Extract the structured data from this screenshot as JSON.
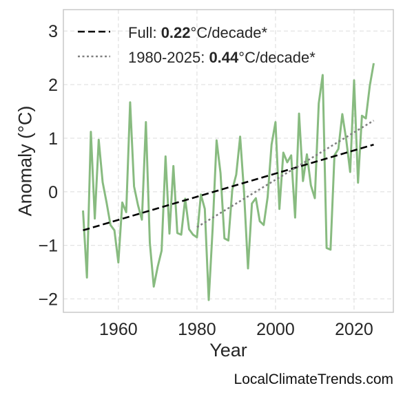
{
  "chart_data": {
    "type": "line",
    "xlabel": "Year",
    "ylabel": "Anomaly (°C)",
    "xlim": [
      1946,
      2030
    ],
    "ylim": [
      -2.25,
      3.4
    ],
    "xticks": [
      1960,
      1980,
      2000,
      2020
    ],
    "yticks": [
      -2,
      -1,
      0,
      1,
      2,
      3
    ],
    "ytick_labels": [
      "−2",
      "−1",
      "0",
      "1",
      "2",
      "3"
    ],
    "grid": true,
    "legend_position": "top-left",
    "series": [
      {
        "style": "line",
        "color": "#88bb80",
        "x": [
          1951,
          1952,
          1953,
          1954,
          1955,
          1956,
          1957,
          1958,
          1959,
          1960,
          1961,
          1962,
          1963,
          1964,
          1965,
          1966,
          1967,
          1968,
          1969,
          1970,
          1971,
          1972,
          1973,
          1974,
          1975,
          1976,
          1977,
          1978,
          1979,
          1980,
          1981,
          1982,
          1983,
          1984,
          1985,
          1986,
          1987,
          1988,
          1989,
          1990,
          1991,
          1992,
          1993,
          1994,
          1995,
          1996,
          1997,
          1998,
          1999,
          2000,
          2001,
          2002,
          2003,
          2004,
          2005,
          2006,
          2007,
          2008,
          2009,
          2010,
          2011,
          2012,
          2013,
          2014,
          2015,
          2016,
          2017,
          2018,
          2019,
          2020,
          2021,
          2022,
          2023,
          2024,
          2025
        ],
        "y": [
          -0.35,
          -1.6,
          1.12,
          -0.5,
          0.97,
          0.18,
          -0.2,
          -0.62,
          -0.72,
          -1.32,
          -0.2,
          -0.38,
          1.67,
          0.1,
          -0.25,
          -0.52,
          1.3,
          -0.95,
          -1.77,
          -1.4,
          -1.1,
          0.66,
          -0.78,
          0.48,
          -0.77,
          -0.8,
          -0.13,
          -0.7,
          -0.8,
          -0.85,
          -0.05,
          -0.32,
          -2.02,
          -0.68,
          0.96,
          0.35,
          -0.87,
          -0.91,
          0.04,
          0.32,
          1.03,
          -0.02,
          -1.43,
          -0.22,
          -0.12,
          -0.55,
          -0.62,
          -0.1,
          0.88,
          1.3,
          -0.32,
          0.73,
          0.55,
          0.68,
          -0.48,
          1.46,
          0.2,
          0.7,
          0.12,
          -0.12,
          1.65,
          2.18,
          -1.05,
          -1.08,
          0.68,
          0.8,
          1.45,
          0.97,
          0.37,
          2.08,
          0.17,
          1.42,
          1.37,
          1.98,
          2.4
        ]
      },
      {
        "style": "dashed",
        "color": "#000000",
        "x": [
          1951,
          2025
        ],
        "y": [
          -0.72,
          0.88
        ]
      },
      {
        "style": "dotted",
        "color": "#808080",
        "x": [
          1980,
          2025
        ],
        "y": [
          -0.66,
          1.33
        ]
      }
    ],
    "legend": [
      {
        "prefix": "Full: ",
        "value": "0.22",
        "suffix": "°C/decade*",
        "style": "dashed",
        "color": "#000000"
      },
      {
        "prefix": "1980-2025: ",
        "value": "0.44",
        "suffix": "°C/decade*",
        "style": "dotted",
        "color": "#808080"
      }
    ]
  },
  "footer": "LocalClimateTrends.com"
}
